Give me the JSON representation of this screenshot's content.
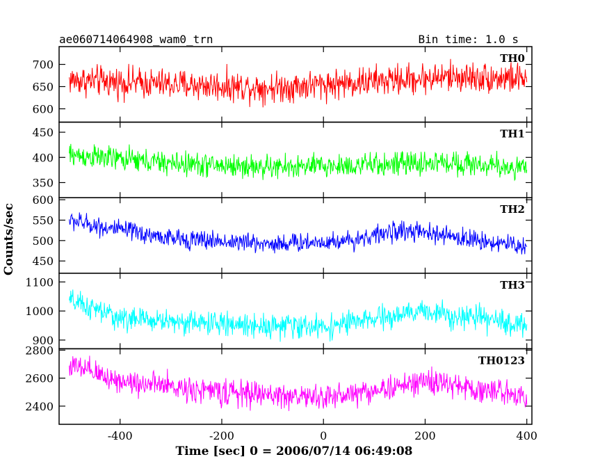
{
  "header": {
    "title": "ae060714064908_wam0_trn",
    "bin_time": "Bin time: 1.0 s"
  },
  "chart_data": {
    "type": "line",
    "xlabel": "Time [sec] 0 = 2006/07/14 06:49:08",
    "ylabel": "Counts/sec",
    "xlim": [
      -520,
      410
    ],
    "xticks": [
      -400,
      -200,
      0,
      200,
      400
    ],
    "x_start": -500,
    "x_end": 400,
    "x_step": 1,
    "panels": [
      {
        "name": "TH0",
        "color": "#ff0000",
        "ylim": [
          570,
          740
        ],
        "yticks": [
          600,
          650,
          700
        ],
        "trend": [
          {
            "x": -500,
            "y": 665
          },
          {
            "x": -300,
            "y": 655
          },
          {
            "x": -100,
            "y": 648
          },
          {
            "x": 100,
            "y": 662
          },
          {
            "x": 250,
            "y": 672
          },
          {
            "x": 400,
            "y": 668
          }
        ],
        "noise_amplitude": 32
      },
      {
        "name": "TH1",
        "color": "#00ff00",
        "ylim": [
          320,
          470
        ],
        "yticks": [
          350,
          400,
          450
        ],
        "trend": [
          {
            "x": -500,
            "y": 405
          },
          {
            "x": -300,
            "y": 388
          },
          {
            "x": -100,
            "y": 380
          },
          {
            "x": 100,
            "y": 385
          },
          {
            "x": 250,
            "y": 390
          },
          {
            "x": 400,
            "y": 378
          }
        ],
        "noise_amplitude": 22
      },
      {
        "name": "TH2",
        "color": "#0000ff",
        "ylim": [
          420,
          605
        ],
        "yticks": [
          450,
          500,
          550,
          600
        ],
        "trend": [
          {
            "x": -500,
            "y": 550
          },
          {
            "x": -420,
            "y": 530
          },
          {
            "x": -300,
            "y": 505
          },
          {
            "x": -100,
            "y": 492
          },
          {
            "x": 50,
            "y": 500
          },
          {
            "x": 150,
            "y": 525
          },
          {
            "x": 250,
            "y": 510
          },
          {
            "x": 400,
            "y": 485
          }
        ],
        "noise_amplitude": 22
      },
      {
        "name": "TH3",
        "color": "#00ffff",
        "ylim": [
          870,
          1130
        ],
        "yticks": [
          900,
          1000,
          1100
        ],
        "trend": [
          {
            "x": -500,
            "y": 1035
          },
          {
            "x": -400,
            "y": 975
          },
          {
            "x": -200,
            "y": 955
          },
          {
            "x": 0,
            "y": 945
          },
          {
            "x": 150,
            "y": 985
          },
          {
            "x": 200,
            "y": 1000
          },
          {
            "x": 300,
            "y": 975
          },
          {
            "x": 400,
            "y": 950
          }
        ],
        "noise_amplitude": 38
      },
      {
        "name": "TH0123",
        "color": "#ff00ff",
        "ylim": [
          2270,
          2810
        ],
        "yticks": [
          2400,
          2600,
          2800
        ],
        "trend": [
          {
            "x": -500,
            "y": 2690
          },
          {
            "x": -400,
            "y": 2580
          },
          {
            "x": -200,
            "y": 2500
          },
          {
            "x": 0,
            "y": 2460
          },
          {
            "x": 150,
            "y": 2540
          },
          {
            "x": 200,
            "y": 2580
          },
          {
            "x": 300,
            "y": 2520
          },
          {
            "x": 400,
            "y": 2480
          }
        ],
        "noise_amplitude": 85
      }
    ]
  }
}
